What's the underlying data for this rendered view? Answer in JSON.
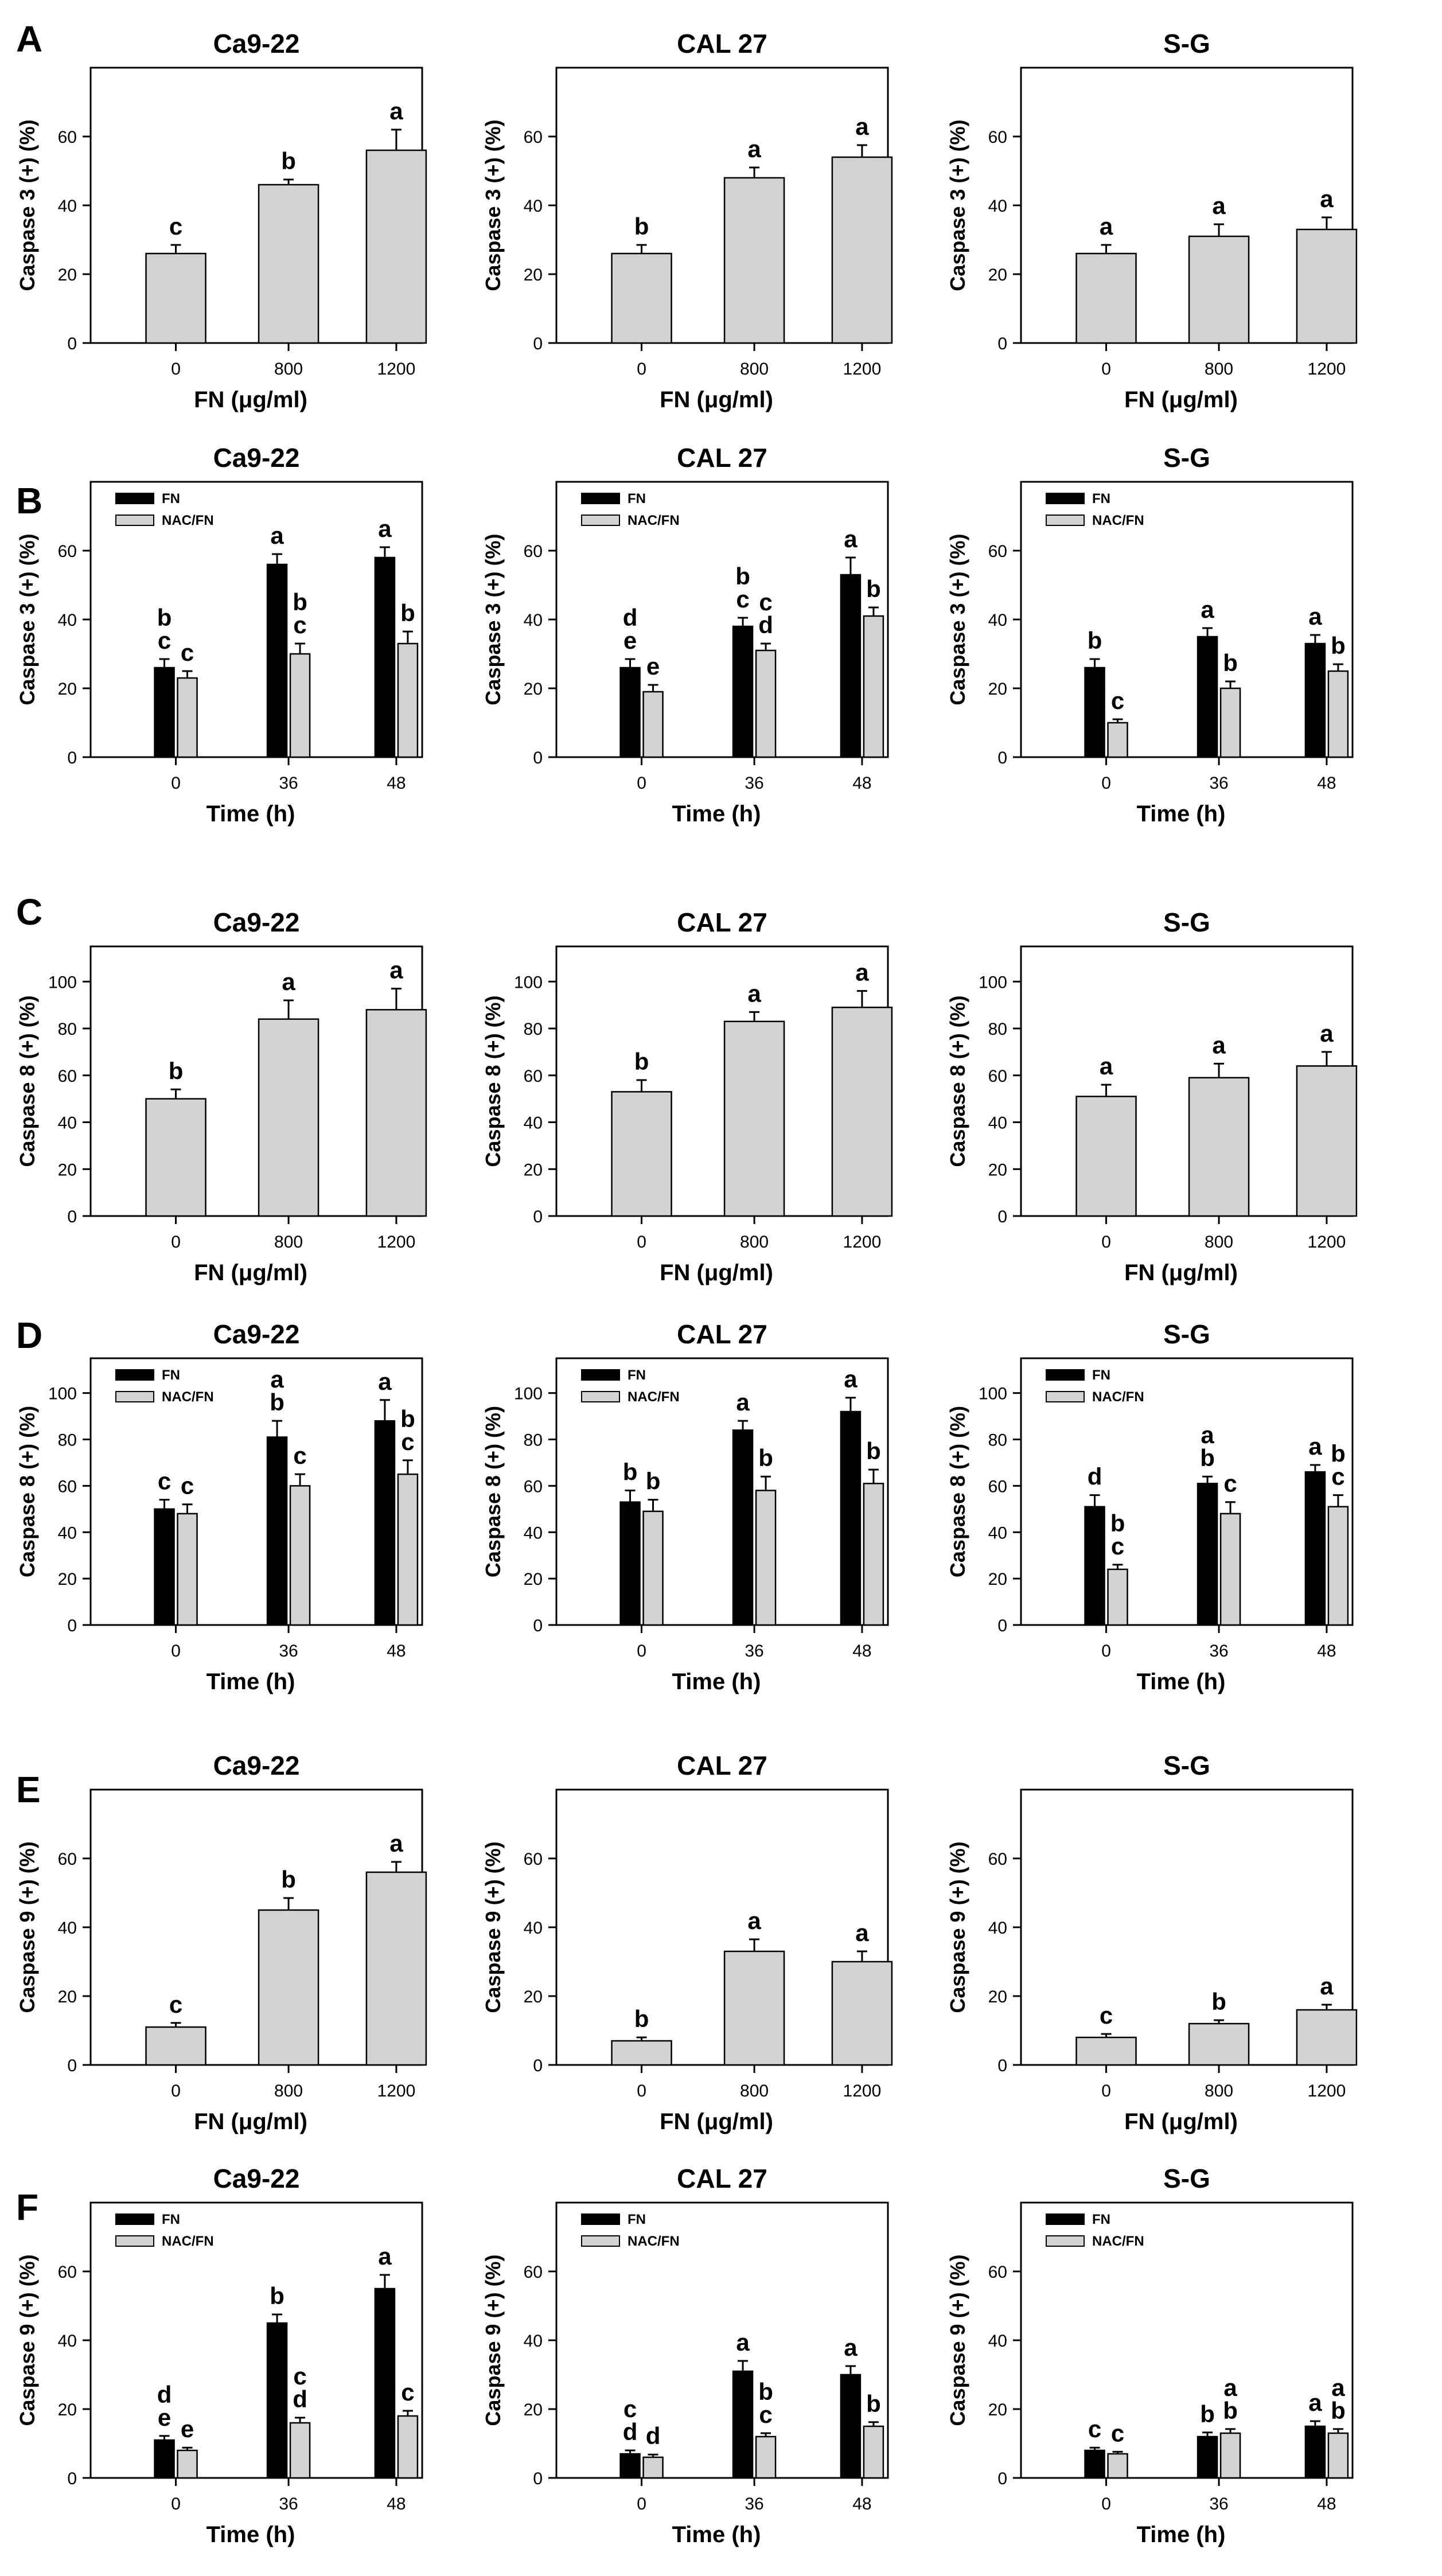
{
  "colors": {
    "fn": "#000000",
    "nac": "#d3d3d3",
    "single": "#d3d3d3",
    "frame": "#000000"
  },
  "panel_labels": [
    "A",
    "B",
    "C",
    "D",
    "E",
    "F"
  ],
  "chart_data": [
    {
      "id": "A-Ca9-22",
      "row": 0,
      "col": 0,
      "type": "bar",
      "title": "Ca9-22",
      "ylabel": "Caspase 3 (+) (%)",
      "xlabel": "FN (μg/ml)",
      "ylim": [
        0,
        80
      ],
      "yticks": [
        0,
        20,
        40,
        60
      ],
      "categories": [
        "0",
        "800",
        "1200"
      ],
      "series": [
        {
          "name": "FN",
          "values": [
            26,
            46,
            56
          ],
          "errors": [
            2.5,
            1.5,
            6
          ],
          "letters": [
            [
              "c"
            ],
            [
              "b"
            ],
            [
              "a"
            ]
          ]
        }
      ]
    },
    {
      "id": "A-CAL27",
      "row": 0,
      "col": 1,
      "type": "bar",
      "title": "CAL 27",
      "ylabel": "Caspase 3 (+) (%)",
      "xlabel": "FN (μg/ml)",
      "ylim": [
        0,
        80
      ],
      "yticks": [
        0,
        20,
        40,
        60
      ],
      "categories": [
        "0",
        "800",
        "1200"
      ],
      "series": [
        {
          "name": "FN",
          "values": [
            26,
            48,
            54
          ],
          "errors": [
            2.5,
            3,
            3.5
          ],
          "letters": [
            [
              "b"
            ],
            [
              "a"
            ],
            [
              "a"
            ]
          ]
        }
      ]
    },
    {
      "id": "A-S-G",
      "row": 0,
      "col": 2,
      "type": "bar",
      "title": "S-G",
      "ylabel": "Caspase 3 (+) (%)",
      "xlabel": "FN (μg/ml)",
      "ylim": [
        0,
        80
      ],
      "yticks": [
        0,
        20,
        40,
        60
      ],
      "categories": [
        "0",
        "800",
        "1200"
      ],
      "series": [
        {
          "name": "FN",
          "values": [
            26,
            31,
            33
          ],
          "errors": [
            2.5,
            3.5,
            3.5
          ],
          "letters": [
            [
              "a"
            ],
            [
              "a"
            ],
            [
              "a"
            ]
          ]
        }
      ]
    },
    {
      "id": "B-Ca9-22",
      "row": 1,
      "col": 0,
      "type": "bar",
      "title": "Ca9-22",
      "ylabel": "Caspase 3 (+) (%)",
      "xlabel": "Time (h)",
      "ylim": [
        0,
        80
      ],
      "yticks": [
        0,
        20,
        40,
        60
      ],
      "categories": [
        "0",
        "36",
        "48"
      ],
      "legend": [
        "FN",
        "NAC/FN"
      ],
      "series": [
        {
          "name": "FN",
          "values": [
            26,
            56,
            58
          ],
          "errors": [
            2.5,
            3,
            3
          ],
          "letters": [
            [
              "b",
              "c"
            ],
            [
              "a"
            ],
            [
              "a"
            ]
          ]
        },
        {
          "name": "NAC/FN",
          "values": [
            23,
            30,
            33
          ],
          "errors": [
            2,
            3,
            3.5
          ],
          "letters": [
            [
              "c"
            ],
            [
              "b",
              "c"
            ],
            [
              "b"
            ]
          ]
        }
      ]
    },
    {
      "id": "B-CAL27",
      "row": 1,
      "col": 1,
      "type": "bar",
      "title": "CAL 27",
      "ylabel": "Caspase 3 (+) (%)",
      "xlabel": "Time (h)",
      "ylim": [
        0,
        80
      ],
      "yticks": [
        0,
        20,
        40,
        60
      ],
      "categories": [
        "0",
        "36",
        "48"
      ],
      "legend": [
        "FN",
        "NAC/FN"
      ],
      "series": [
        {
          "name": "FN",
          "values": [
            26,
            38,
            53
          ],
          "errors": [
            2.5,
            2.5,
            5
          ],
          "letters": [
            [
              "d",
              "e"
            ],
            [
              "b",
              "c"
            ],
            [
              "a"
            ]
          ]
        },
        {
          "name": "NAC/FN",
          "values": [
            19,
            31,
            41
          ],
          "errors": [
            2,
            2,
            2.5
          ],
          "letters": [
            [
              "e"
            ],
            [
              "c",
              "d"
            ],
            [
              "b"
            ]
          ]
        }
      ]
    },
    {
      "id": "B-S-G",
      "row": 1,
      "col": 2,
      "type": "bar",
      "title": "S-G",
      "ylabel": "Caspase 3 (+) (%)",
      "xlabel": "Time (h)",
      "ylim": [
        0,
        80
      ],
      "yticks": [
        0,
        20,
        40,
        60
      ],
      "categories": [
        "0",
        "36",
        "48"
      ],
      "legend": [
        "FN",
        "NAC/FN"
      ],
      "series": [
        {
          "name": "FN",
          "values": [
            26,
            35,
            33
          ],
          "errors": [
            2.5,
            2.5,
            2.5
          ],
          "letters": [
            [
              "b"
            ],
            [
              "a"
            ],
            [
              "a"
            ]
          ]
        },
        {
          "name": "NAC/FN",
          "values": [
            10,
            20,
            25
          ],
          "errors": [
            1,
            2,
            2
          ],
          "letters": [
            [
              "c"
            ],
            [
              "b"
            ],
            [
              "b"
            ]
          ]
        }
      ]
    },
    {
      "id": "C-Ca9-22",
      "row": 2,
      "col": 0,
      "type": "bar",
      "title": "Ca9-22",
      "ylabel": "Caspase 8 (+) (%)",
      "xlabel": "FN (μg/ml)",
      "ylim": [
        0,
        115
      ],
      "yticks": [
        0,
        20,
        40,
        60,
        80,
        100
      ],
      "categories": [
        "0",
        "800",
        "1200"
      ],
      "series": [
        {
          "name": "FN",
          "values": [
            50,
            84,
            88
          ],
          "errors": [
            4,
            8,
            9
          ],
          "letters": [
            [
              "b"
            ],
            [
              "a"
            ],
            [
              "a"
            ]
          ]
        }
      ]
    },
    {
      "id": "C-CAL27",
      "row": 2,
      "col": 1,
      "type": "bar",
      "title": "CAL 27",
      "ylabel": "Caspase 8 (+) (%)",
      "xlabel": "FN (μg/ml)",
      "ylim": [
        0,
        115
      ],
      "yticks": [
        0,
        20,
        40,
        60,
        80,
        100
      ],
      "categories": [
        "0",
        "800",
        "1200"
      ],
      "series": [
        {
          "name": "FN",
          "values": [
            53,
            83,
            89
          ],
          "errors": [
            5,
            4,
            7
          ],
          "letters": [
            [
              "b"
            ],
            [
              "a"
            ],
            [
              "a"
            ]
          ]
        }
      ]
    },
    {
      "id": "C-S-G",
      "row": 2,
      "col": 2,
      "type": "bar",
      "title": "S-G",
      "ylabel": "Caspase 8 (+) (%)",
      "xlabel": "FN (μg/ml)",
      "ylim": [
        0,
        115
      ],
      "yticks": [
        0,
        20,
        40,
        60,
        80,
        100
      ],
      "categories": [
        "0",
        "800",
        "1200"
      ],
      "series": [
        {
          "name": "FN",
          "values": [
            51,
            59,
            64
          ],
          "errors": [
            5,
            6,
            6
          ],
          "letters": [
            [
              "a"
            ],
            [
              "a"
            ],
            [
              "a"
            ]
          ]
        }
      ]
    },
    {
      "id": "D-Ca9-22",
      "row": 3,
      "col": 0,
      "type": "bar",
      "title": "Ca9-22",
      "ylabel": "Caspase 8 (+) (%)",
      "xlabel": "Time (h)",
      "ylim": [
        0,
        115
      ],
      "yticks": [
        0,
        20,
        40,
        60,
        80,
        100
      ],
      "categories": [
        "0",
        "36",
        "48"
      ],
      "legend": [
        "FN",
        "NAC/FN"
      ],
      "series": [
        {
          "name": "FN",
          "values": [
            50,
            81,
            88
          ],
          "errors": [
            4,
            7,
            9
          ],
          "letters": [
            [
              "c"
            ],
            [
              "a",
              "b"
            ],
            [
              "a"
            ]
          ]
        },
        {
          "name": "NAC/FN",
          "values": [
            48,
            60,
            65
          ],
          "errors": [
            4,
            5,
            6
          ],
          "letters": [
            [
              "c"
            ],
            [
              "c"
            ],
            [
              "b",
              "c"
            ]
          ]
        }
      ]
    },
    {
      "id": "D-CAL27",
      "row": 3,
      "col": 1,
      "type": "bar",
      "title": "CAL 27",
      "ylabel": "Caspase 8 (+) (%)",
      "xlabel": "Time (h)",
      "ylim": [
        0,
        115
      ],
      "yticks": [
        0,
        20,
        40,
        60,
        80,
        100
      ],
      "categories": [
        "0",
        "36",
        "48"
      ],
      "legend": [
        "FN",
        "NAC/FN"
      ],
      "series": [
        {
          "name": "FN",
          "values": [
            53,
            84,
            92
          ],
          "errors": [
            5,
            4,
            6
          ],
          "letters": [
            [
              "b"
            ],
            [
              "a"
            ],
            [
              "a"
            ]
          ]
        },
        {
          "name": "NAC/FN",
          "values": [
            49,
            58,
            61
          ],
          "errors": [
            5,
            6,
            6
          ],
          "letters": [
            [
              "b"
            ],
            [
              "b"
            ],
            [
              "b"
            ]
          ]
        }
      ]
    },
    {
      "id": "D-S-G",
      "row": 3,
      "col": 2,
      "type": "bar",
      "title": "S-G",
      "ylabel": "Caspase 8 (+) (%)",
      "xlabel": "Time (h)",
      "ylim": [
        0,
        115
      ],
      "yticks": [
        0,
        20,
        40,
        60,
        80,
        100
      ],
      "categories": [
        "0",
        "36",
        "48"
      ],
      "legend": [
        "FN",
        "NAC/FN"
      ],
      "series": [
        {
          "name": "FN",
          "values": [
            51,
            61,
            66
          ],
          "errors": [
            5,
            3,
            3
          ],
          "letters": [
            [
              "d"
            ],
            [
              "a",
              "b"
            ],
            [
              "a"
            ]
          ]
        },
        {
          "name": "NAC/FN",
          "values": [
            24,
            48,
            51
          ],
          "errors": [
            2,
            5,
            5
          ],
          "letters": [
            [
              "b",
              "c"
            ],
            [
              "c"
            ],
            [
              "b",
              "c"
            ]
          ]
        }
      ]
    },
    {
      "id": "E-Ca9-22",
      "row": 4,
      "col": 0,
      "type": "bar",
      "title": "Ca9-22",
      "ylabel": "Caspase 9 (+) (%)",
      "xlabel": "FN (μg/ml)",
      "ylim": [
        0,
        80
      ],
      "yticks": [
        0,
        20,
        40,
        60
      ],
      "categories": [
        "0",
        "800",
        "1200"
      ],
      "series": [
        {
          "name": "FN",
          "values": [
            11,
            45,
            56
          ],
          "errors": [
            1.2,
            3.5,
            3
          ],
          "letters": [
            [
              "c"
            ],
            [
              "b"
            ],
            [
              "a"
            ]
          ]
        }
      ]
    },
    {
      "id": "E-CAL27",
      "row": 4,
      "col": 1,
      "type": "bar",
      "title": "CAL 27",
      "ylabel": "Caspase 9 (+) (%)",
      "xlabel": "FN (μg/ml)",
      "ylim": [
        0,
        80
      ],
      "yticks": [
        0,
        20,
        40,
        60
      ],
      "categories": [
        "0",
        "800",
        "1200"
      ],
      "series": [
        {
          "name": "FN",
          "values": [
            7,
            33,
            30
          ],
          "errors": [
            1,
            3.5,
            3
          ],
          "letters": [
            [
              "b"
            ],
            [
              "a"
            ],
            [
              "a"
            ]
          ]
        }
      ]
    },
    {
      "id": "E-S-G",
      "row": 4,
      "col": 2,
      "type": "bar",
      "title": "S-G",
      "ylabel": "Caspase 9 (+) (%)",
      "xlabel": "FN (μg/ml)",
      "ylim": [
        0,
        80
      ],
      "yticks": [
        0,
        20,
        40,
        60
      ],
      "categories": [
        "0",
        "800",
        "1200"
      ],
      "series": [
        {
          "name": "FN",
          "values": [
            8,
            12,
            16
          ],
          "errors": [
            1,
            1,
            1.5
          ],
          "letters": [
            [
              "c"
            ],
            [
              "b"
            ],
            [
              "a"
            ]
          ]
        }
      ]
    },
    {
      "id": "F-Ca9-22",
      "row": 5,
      "col": 0,
      "type": "bar",
      "title": "Ca9-22",
      "ylabel": "Caspase 9 (+) (%)",
      "xlabel": "Time (h)",
      "ylim": [
        0,
        80
      ],
      "yticks": [
        0,
        20,
        40,
        60
      ],
      "categories": [
        "0",
        "36",
        "48"
      ],
      "legend": [
        "FN",
        "NAC/FN"
      ],
      "series": [
        {
          "name": "FN",
          "values": [
            11,
            45,
            55
          ],
          "errors": [
            1.2,
            2.5,
            4
          ],
          "letters": [
            [
              "d",
              "e"
            ],
            [
              "b"
            ],
            [
              "a"
            ]
          ]
        },
        {
          "name": "NAC/FN",
          "values": [
            8,
            16,
            18
          ],
          "errors": [
            0.8,
            1.5,
            1.5
          ],
          "letters": [
            [
              "e"
            ],
            [
              "c",
              "d"
            ],
            [
              "c"
            ]
          ]
        }
      ]
    },
    {
      "id": "F-CAL27",
      "row": 5,
      "col": 1,
      "type": "bar",
      "title": "CAL 27",
      "ylabel": "Caspase 9 (+) (%)",
      "xlabel": "Time (h)",
      "ylim": [
        0,
        80
      ],
      "yticks": [
        0,
        20,
        40,
        60
      ],
      "categories": [
        "0",
        "36",
        "48"
      ],
      "legend": [
        "FN",
        "NAC/FN"
      ],
      "series": [
        {
          "name": "FN",
          "values": [
            7,
            31,
            30
          ],
          "errors": [
            1,
            3,
            2.5
          ],
          "letters": [
            [
              "c",
              "d"
            ],
            [
              "a"
            ],
            [
              "a"
            ]
          ]
        },
        {
          "name": "NAC/FN",
          "values": [
            6,
            12,
            15
          ],
          "errors": [
            0.8,
            1,
            1.2
          ],
          "letters": [
            [
              "d"
            ],
            [
              "b",
              "c"
            ],
            [
              "b"
            ]
          ]
        }
      ]
    },
    {
      "id": "F-S-G",
      "row": 5,
      "col": 2,
      "type": "bar",
      "title": "S-G",
      "ylabel": "Caspase 9 (+) (%)",
      "xlabel": "Time (h)",
      "ylim": [
        0,
        80
      ],
      "yticks": [
        0,
        20,
        40,
        60
      ],
      "categories": [
        "0",
        "36",
        "48"
      ],
      "legend": [
        "FN",
        "NAC/FN"
      ],
      "series": [
        {
          "name": "FN",
          "values": [
            8,
            12,
            15
          ],
          "errors": [
            0.8,
            1.2,
            1.5
          ],
          "letters": [
            [
              "c"
            ],
            [
              "b"
            ],
            [
              "a"
            ]
          ]
        },
        {
          "name": "NAC/FN",
          "values": [
            7,
            13,
            13
          ],
          "errors": [
            0.6,
            1.2,
            1.2
          ],
          "letters": [
            [
              "c"
            ],
            [
              "a",
              "b"
            ],
            [
              "a",
              "b"
            ]
          ]
        }
      ]
    }
  ]
}
